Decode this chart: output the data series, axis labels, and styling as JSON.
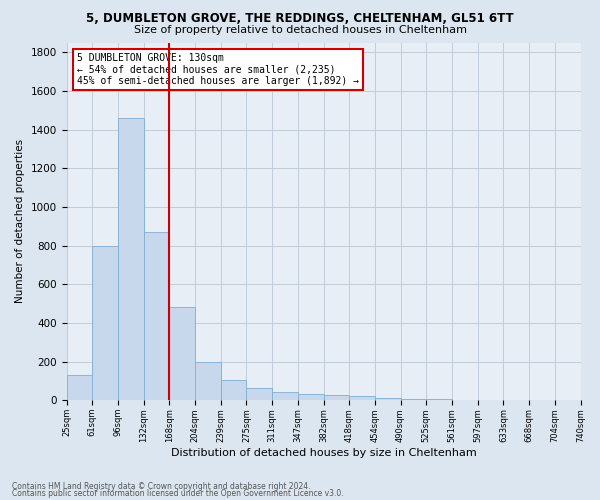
{
  "title": "5, DUMBLETON GROVE, THE REDDINGS, CHELTENHAM, GL51 6TT",
  "subtitle": "Size of property relative to detached houses in Cheltenham",
  "xlabel": "Distribution of detached houses by size in Cheltenham",
  "ylabel": "Number of detached properties",
  "bar_values": [
    130,
    800,
    1460,
    870,
    480,
    200,
    105,
    65,
    45,
    35,
    25,
    20,
    10,
    5,
    5,
    3,
    2,
    2,
    2,
    2
  ],
  "bar_labels": [
    "25sqm",
    "61sqm",
    "96sqm",
    "132sqm",
    "168sqm",
    "204sqm",
    "239sqm",
    "275sqm",
    "311sqm",
    "347sqm",
    "382sqm",
    "418sqm",
    "454sqm",
    "490sqm",
    "525sqm",
    "561sqm",
    "597sqm",
    "633sqm",
    "668sqm",
    "704sqm",
    "740sqm"
  ],
  "bar_color": "#c8d8ec",
  "bar_edge_color": "#7fafd4",
  "vline_x": 4,
  "vline_color": "#cc0000",
  "annotation_title": "5 DUMBLETON GROVE: 130sqm",
  "annotation_line1": "← 54% of detached houses are smaller (2,235)",
  "annotation_line2": "45% of semi-detached houses are larger (1,892) →",
  "annotation_box_edgecolor": "#cc0000",
  "ylim": [
    0,
    1850
  ],
  "yticks": [
    0,
    200,
    400,
    600,
    800,
    1000,
    1200,
    1400,
    1600,
    1800
  ],
  "footnote1": "Contains HM Land Registry data © Crown copyright and database right 2024.",
  "footnote2": "Contains public sector information licensed under the Open Government Licence v3.0.",
  "background_color": "#dce6f0",
  "plot_bg_color": "#e8eef6",
  "grid_color": "#c0ccd8"
}
